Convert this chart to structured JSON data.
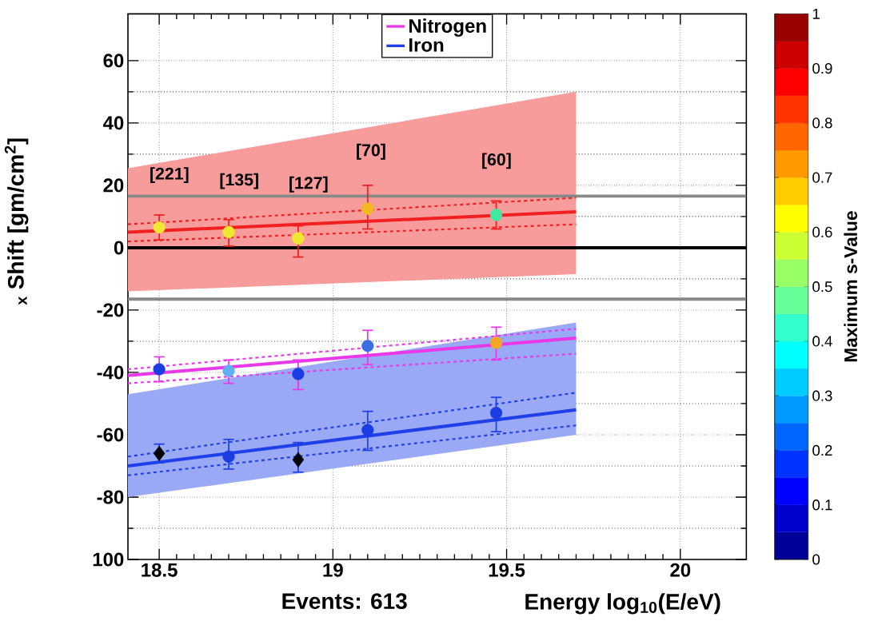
{
  "chart_data": {
    "type": "scatter",
    "xlabel": "Energy  log$_{10}$(E/eV)",
    "ylabel": "$_{x}$ Shift  [gm/cm$^{2}$]",
    "clabel": "Maximum s-Value",
    "xlim": [
      18.41,
      20.19
    ],
    "ylim": [
      -100,
      75
    ],
    "xticks": [
      18.5,
      19,
      19.5,
      20
    ],
    "yticks": [
      {
        "value": -100,
        "label": "100"
      },
      -80,
      -60,
      -40,
      -20,
      0,
      20,
      40,
      60
    ],
    "clim": [
      0,
      1
    ],
    "cticks": [
      0,
      0.1,
      0.2,
      0.3,
      0.4,
      0.5,
      0.6,
      0.7,
      0.8,
      0.9,
      1
    ],
    "grid": true,
    "legend": "top",
    "ref_lines": [
      {
        "axis": "y",
        "value": 16.5,
        "color": "#888888"
      },
      {
        "axis": "y",
        "value": -16.5,
        "color": "#888888"
      },
      {
        "axis": "y",
        "value": 0,
        "color": "#000000"
      }
    ],
    "annotations": [
      "[221]",
      "[135]",
      "[127]",
      "[70]",
      "[60]",
      "Events: 613"
    ],
    "series": [
      {
        "type": "line",
        "color": "#f02020",
        "x": [
          18.41,
          19.7
        ],
        "values": [
          5,
          11.5
        ],
        "lower": [
          -14,
          -8.5
        ],
        "upper": [
          25.5,
          50
        ]
      },
      {
        "type": "line",
        "color": "#f02020",
        "line_style": "dashed",
        "x": [
          18.41,
          19.7
        ],
        "values": [
          7.5,
          16
        ]
      },
      {
        "type": "line",
        "color": "#f02020",
        "line_style": "dashed",
        "x": [
          18.41,
          19.7
        ],
        "values": [
          2,
          7.5
        ]
      },
      {
        "type": "line",
        "name": "Nitrogen",
        "color": "#e838e8",
        "x": [
          18.41,
          19.7
        ],
        "values": [
          -41,
          -29
        ]
      },
      {
        "type": "line",
        "color": "#e838e8",
        "line_style": "dashed",
        "x": [
          18.41,
          19.7
        ],
        "values": [
          -39,
          -26
        ]
      },
      {
        "type": "line",
        "color": "#e838e8",
        "line_style": "dashed",
        "x": [
          18.41,
          19.7
        ],
        "values": [
          -43.5,
          -34
        ]
      },
      {
        "type": "line",
        "name": "Iron",
        "color": "#1f3fe8",
        "x": [
          18.41,
          19.7
        ],
        "values": [
          -70,
          -52
        ],
        "lower": [
          -80,
          -60
        ],
        "upper": [
          -47,
          -24
        ]
      },
      {
        "type": "line",
        "color": "#1f3fe8",
        "line_style": "dashed",
        "x": [
          18.41,
          19.7
        ],
        "values": [
          -67,
          -46.5
        ]
      },
      {
        "type": "line",
        "color": "#1f3fe8",
        "line_style": "dashed",
        "x": [
          18.41,
          19.7
        ],
        "values": [
          -73,
          -57
        ]
      },
      {
        "marker": "circle",
        "color": "#f02020",
        "x": [
          18.5,
          18.7,
          18.9,
          19.1,
          19.47
        ],
        "values": [
          6.5,
          5,
          3,
          12.5,
          10.5
        ],
        "errors": [
          [
            2.5,
            10.5
          ],
          [
            0.5,
            9
          ],
          [
            -3,
            7
          ],
          [
            6,
            20
          ],
          [
            6,
            15
          ]
        ],
        "colors": [
          "#f0e830",
          "#f0e830",
          "#f0e830",
          "#f5b820",
          "#40e8a0"
        ]
      },
      {
        "marker": "circle",
        "color": "#e838e8",
        "x": [
          18.5,
          18.7,
          18.9,
          19.1,
          19.47
        ],
        "values": [
          -39,
          -39.5,
          -40.5,
          -31.5,
          -30.5
        ],
        "errors": [
          [
            -43,
            -35
          ],
          [
            -43.5,
            -36
          ],
          [
            -45.5,
            -36
          ],
          [
            -37.5,
            -26.5
          ],
          [
            -36,
            -25.5
          ]
        ],
        "colors": [
          "#1a3ce0",
          "#60b0f0",
          "#1a3ce0",
          "#3a6ee0",
          "#f5a623"
        ]
      },
      {
        "marker": "circle",
        "color": "#1f3fe8",
        "x": [
          18.7,
          19.1,
          19.47
        ],
        "values": [
          -67,
          -58.5,
          -53
        ],
        "errors": [
          [
            -71,
            -61.5
          ],
          [
            -65,
            -52.5
          ],
          [
            -59,
            -48
          ]
        ],
        "colors": [
          "#1a3ce0",
          "#1a3ce0",
          "#1a3ce0"
        ]
      },
      {
        "marker": "diamond",
        "color": "#1f3fe8",
        "x": [
          18.5,
          18.9
        ],
        "values": [
          -66,
          -68
        ],
        "errors": [
          [
            -69,
            -63
          ],
          [
            -72,
            -62.5
          ]
        ],
        "colors": [
          "#000000",
          "#000000"
        ]
      }
    ]
  }
}
